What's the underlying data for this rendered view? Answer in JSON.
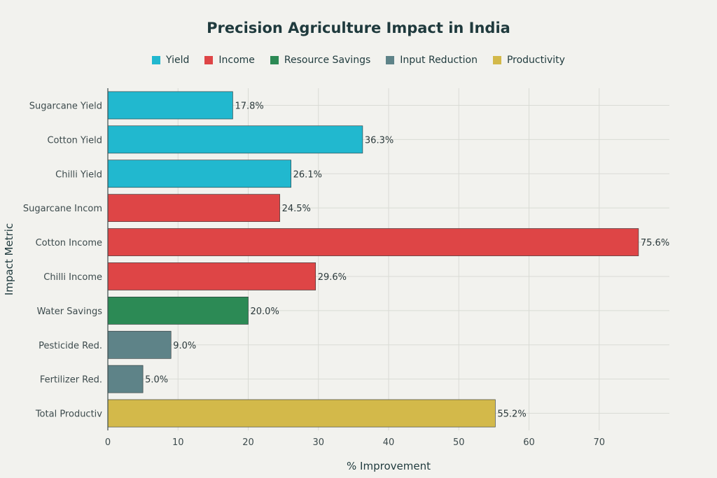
{
  "chart_data": {
    "type": "bar",
    "orientation": "horizontal",
    "title": "Precision Agriculture Impact in India",
    "xlabel": "% Improvement",
    "ylabel": "Impact Metric",
    "xlim": [
      0,
      80
    ],
    "xticks": [
      0,
      10,
      20,
      30,
      40,
      50,
      60,
      70
    ],
    "grid": true,
    "legend_position": "top",
    "legend": [
      {
        "name": "Yield",
        "color": "#21b8cf"
      },
      {
        "name": "Income",
        "color": "#de4546"
      },
      {
        "name": "Resource Savings",
        "color": "#2c8a55"
      },
      {
        "name": "Input Reduction",
        "color": "#5e8388"
      },
      {
        "name": "Productivity",
        "color": "#d3b94a"
      }
    ],
    "bars": [
      {
        "category": "Sugarcane Yield",
        "value": 17.8,
        "label": "17.8%",
        "group": "Yield"
      },
      {
        "category": "Cotton Yield",
        "value": 36.3,
        "label": "36.3%",
        "group": "Yield"
      },
      {
        "category": "Chilli Yield",
        "value": 26.1,
        "label": "26.1%",
        "group": "Yield"
      },
      {
        "category": "Sugarcane Incom",
        "value": 24.5,
        "label": "24.5%",
        "group": "Income"
      },
      {
        "category": "Cotton Income",
        "value": 75.6,
        "label": "75.6%",
        "group": "Income"
      },
      {
        "category": "Chilli Income",
        "value": 29.6,
        "label": "29.6%",
        "group": "Income"
      },
      {
        "category": "Water Savings",
        "value": 20.0,
        "label": "20.0%",
        "group": "Resource Savings"
      },
      {
        "category": "Pesticide Red.",
        "value": 9.0,
        "label": "9.0%",
        "group": "Input Reduction"
      },
      {
        "category": "Fertilizer Red.",
        "value": 5.0,
        "label": "5.0%",
        "group": "Input Reduction"
      },
      {
        "category": "Total Productiv",
        "value": 55.2,
        "label": "55.2%",
        "group": "Productivity"
      }
    ]
  }
}
